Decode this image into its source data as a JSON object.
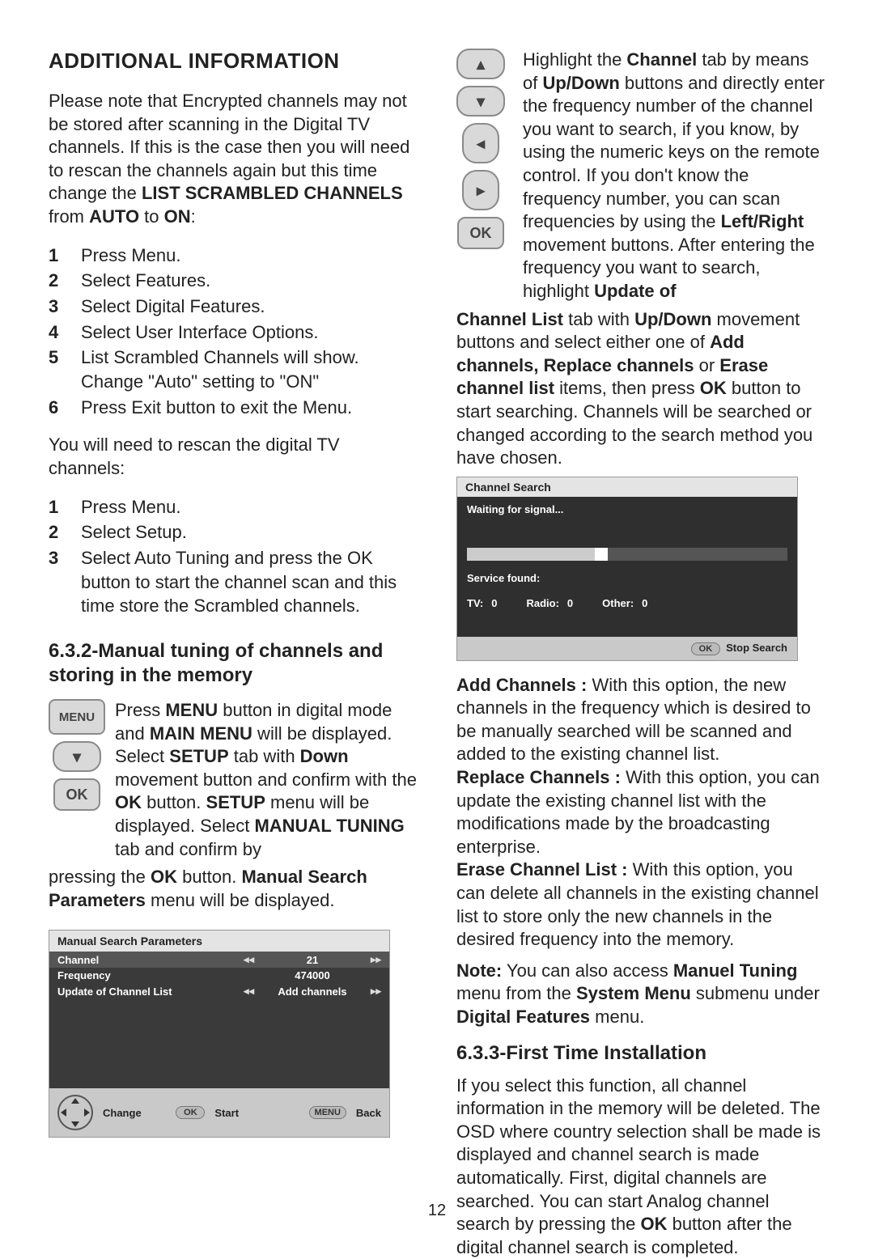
{
  "pageNumber": "12",
  "left": {
    "title": "ADDITIONAL INFORMATION",
    "intro_html": "Please note that Encrypted channels may not be stored after scanning in the Digital TV channels. If this is the case then you will need to rescan the channels again but this time change the <b>LIST SCRAMBLED CHANNELS</b> from <b>AUTO</b> to <b>ON</b>:",
    "list1": [
      "Press Menu.",
      "Select Features.",
      "Select Digital Features.",
      "Select User Interface Options.",
      "List Scrambled Channels will show. Change \"Auto\" setting to \"ON\"",
      "Press Exit button to exit the Menu."
    ],
    "rescan_intro": "You will need to rescan the digital TV channels:",
    "list2": [
      "Press Menu.",
      "Select Setup.",
      "Select Auto Tuning and press the OK button to start the channel scan and this time store the Scrambled channels."
    ],
    "h632": "6.3.2-Manual tuning of channels and storing in the memory",
    "menu_label": "MENU",
    "ok_label": "OK",
    "menu_para_html": "Press <b>MENU</b> button in digital mode and <b>MAIN MENU</b> will be displayed. Select <b>SETUP</b> tab with <b>Down</b> movement button and confirm with the <b>OK</b> button. <b>SETUP</b> menu will be displayed. Select <b>MANUAL TUNING</b> tab and confirm by",
    "menu_para_tail_html": "pressing the <b>OK</b> button. <b>Manual Search Parameters</b> menu will be displayed.",
    "msp": {
      "title": "Manual Search Parameters",
      "rows": [
        {
          "label": "Channel",
          "value": "21"
        },
        {
          "label": "Frequency",
          "value": "474000"
        },
        {
          "label": "Update of Channel List",
          "value": "Add channels"
        }
      ],
      "footer": {
        "change": "Change",
        "start": "Start",
        "back": "Back",
        "ok": "OK",
        "menu": "MENU"
      }
    }
  },
  "right": {
    "ok_label": "OK",
    "nav_para_html": "Highlight the <b>Channel</b> tab by means of <b>Up/Down</b> buttons and directly enter the frequency number of the channel you want to search, if you know, by using the numeric keys on the remote control. If you don't know the frequency number, you can scan frequencies by using the <b>Left/Right</b> movement buttons. After entering the frequency you want to search, highlight <b>Update of</b>",
    "nav_para_tail_html": "<b>Channel List</b> tab with <b>Up/Down</b> movement buttons and select either one of  <b>Add channels, Replace channels</b> or <b>Erase channel list</b> items, then press <b>OK</b> button to start searching. Channels will be searched or changed according to the search method you have chosen.",
    "cs": {
      "title": "Channel Search",
      "waiting": "Waiting for signal...",
      "service": "Service found:",
      "tv_label": "TV:",
      "tv_val": "0",
      "radio_label": "Radio:",
      "radio_val": "0",
      "other_label": "Other:",
      "other_val": "0",
      "stop": "Stop Search",
      "ok": "OK"
    },
    "add_html": "<b>Add Channels :</b> With this option, the new channels in the frequency which is desired to be manually searched will be scanned and added to the existing channel list.",
    "replace_html": "<b>Replace Channels :</b> With this option, you can update the existing channel list with the modifications made by the broadcasting enterprise.",
    "erase_html": "<b>Erase Channel List :</b> With this option, you can delete all channels in the existing channel list to store only the new channels in the desired frequency into the memory.",
    "note_html": "<b>Note:</b> You can also access <b>Manuel Tuning</b> menu from the <b>System Menu</b> submenu under <b>Digital Features</b> menu.",
    "h633": "6.3.3-First Time Installation",
    "first_time_html": "If you select this function, all channel information in the memory will be deleted. The OSD where country selection shall be made is displayed and channel search is made automatically. First, digital channels are searched. You can start Analog channel search by pressing the <b>OK</b> button after the digital channel search is completed."
  }
}
